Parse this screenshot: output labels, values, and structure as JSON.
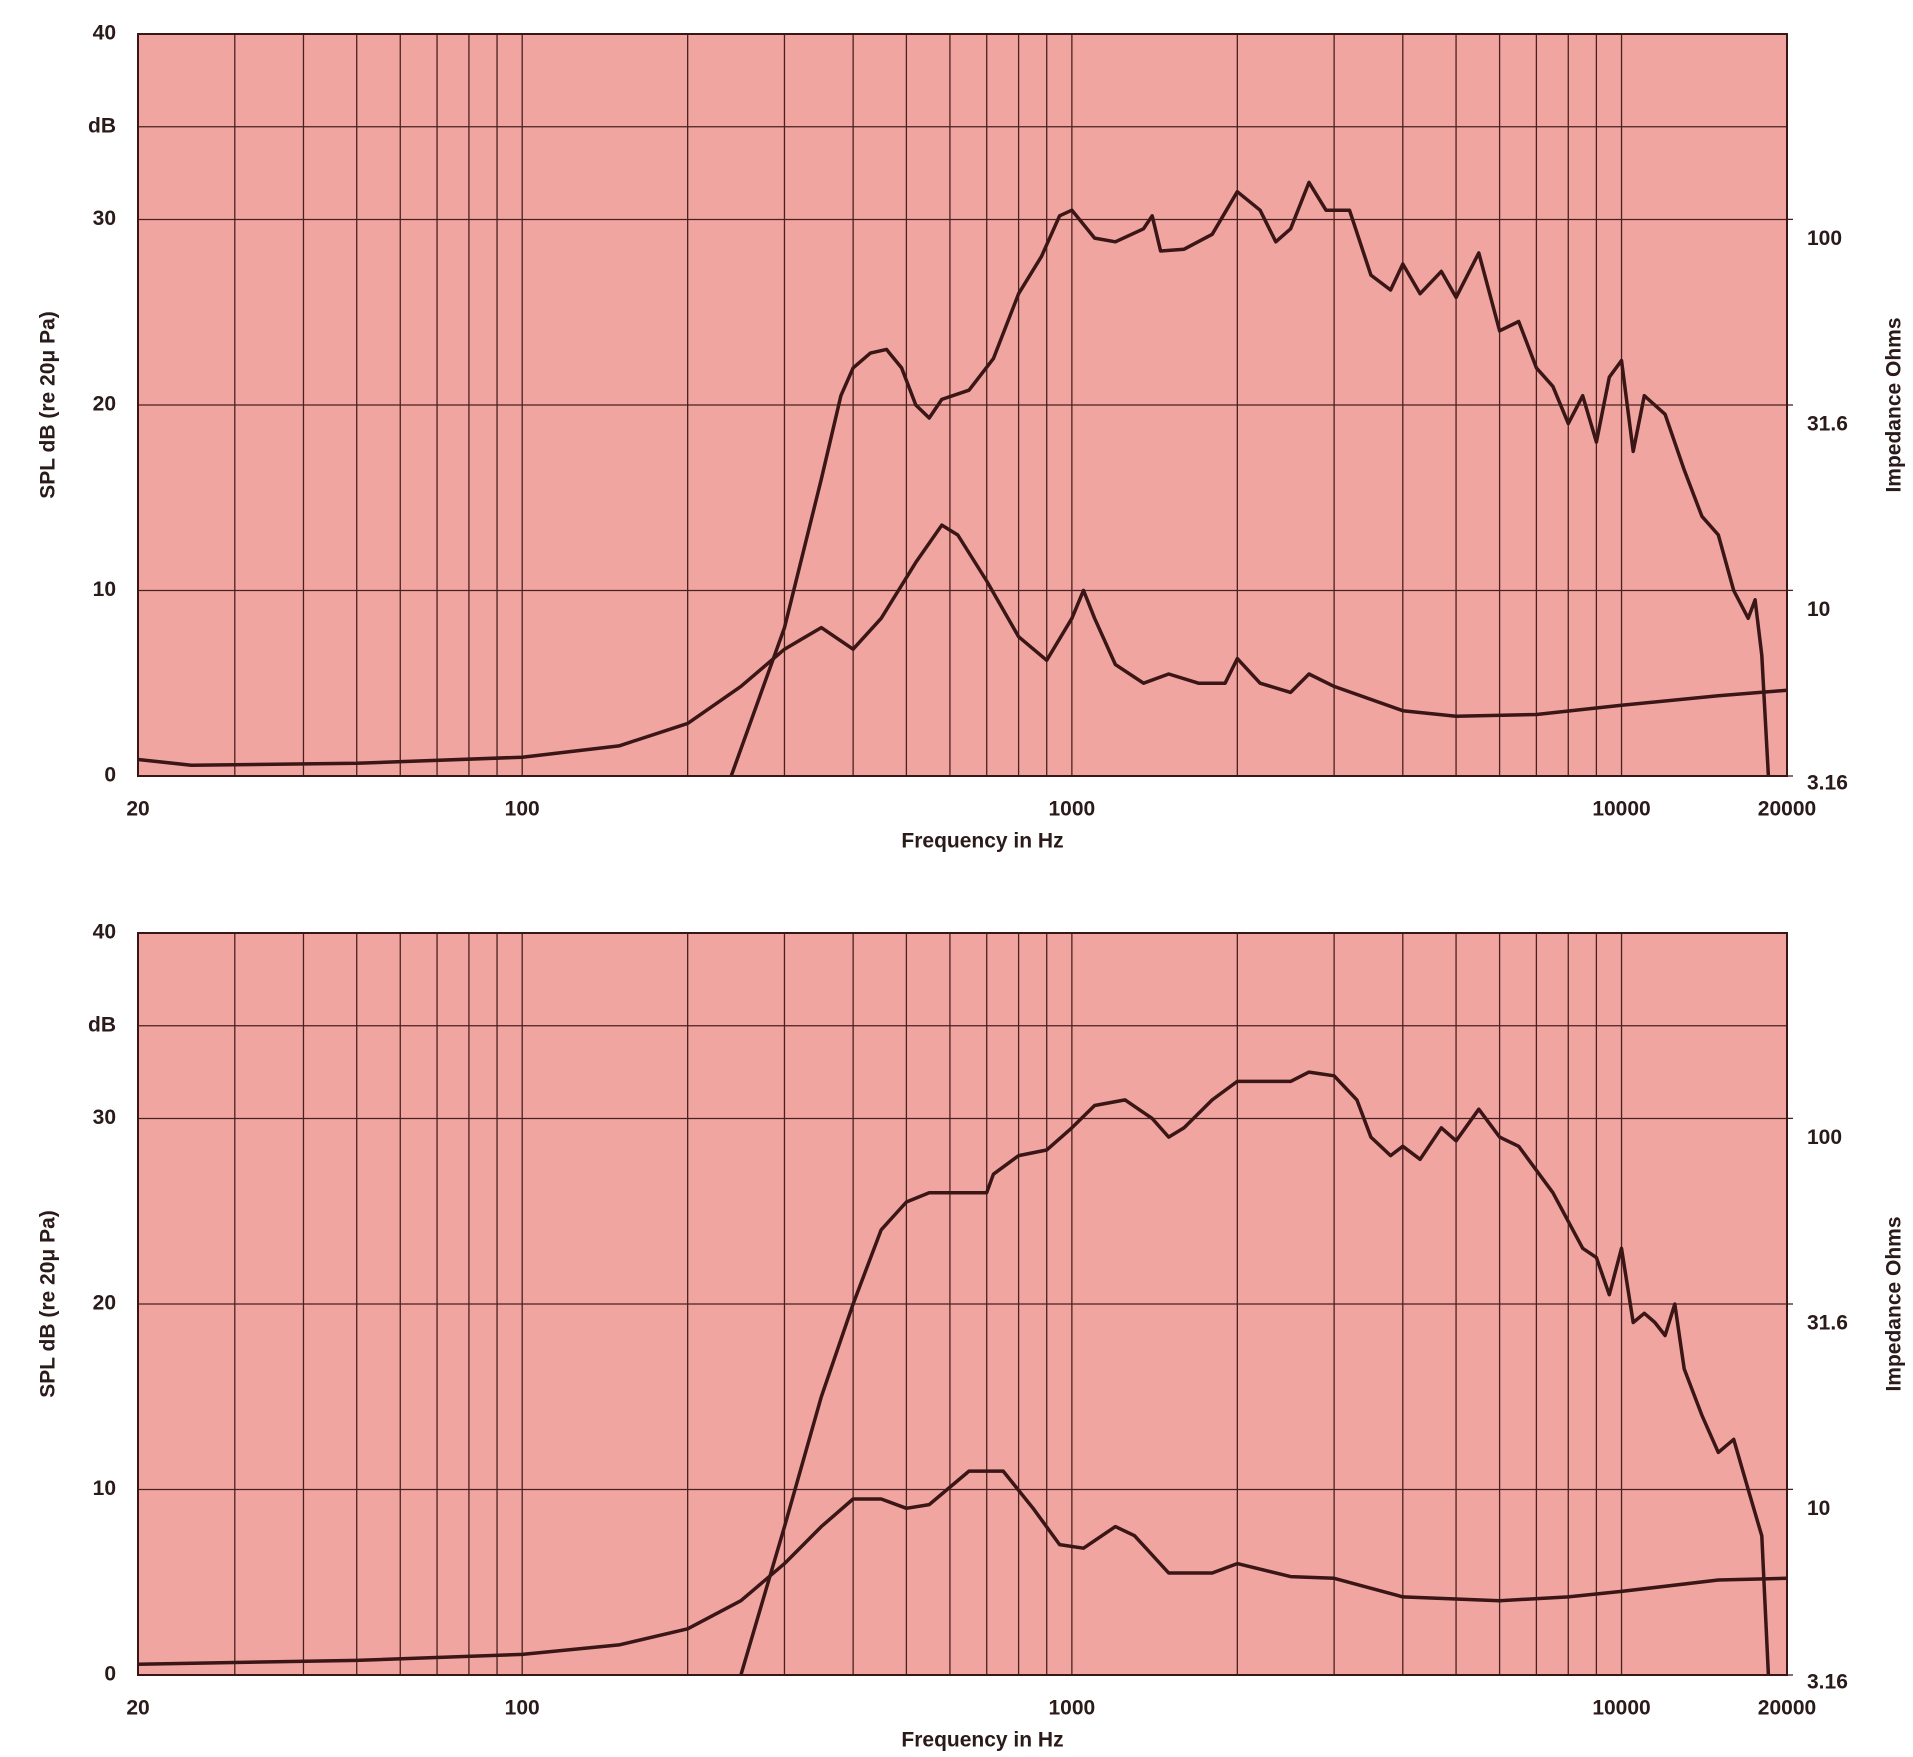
{
  "chart_data": [
    {
      "type": "line",
      "xlabel": "Frequency in Hz",
      "ylabel": "SPL dB (re 20μ Pa)",
      "y2label": "Impedance Ohms",
      "xlog": true,
      "xlim": [
        20,
        20000
      ],
      "xticks": [
        20,
        100,
        1000,
        10000,
        20000
      ],
      "xminorticks": [
        30,
        40,
        50,
        60,
        70,
        80,
        90,
        200,
        300,
        400,
        500,
        600,
        700,
        800,
        900,
        2000,
        3000,
        4000,
        5000,
        6000,
        7000,
        8000,
        9000
      ],
      "ylim": [
        0,
        40
      ],
      "yticks": [
        0,
        10,
        20,
        30,
        {
          "value": 35,
          "label": "dB"
        },
        40
      ],
      "y2log": true,
      "y2lim": [
        3.16,
        316
      ],
      "y2ticks": [
        3.16,
        10,
        31.6,
        100
      ],
      "grid": true,
      "background": "#f1a5a1",
      "series": [
        {
          "color": "#3a1616",
          "axis": "y",
          "x": [
            240,
            300,
            350,
            380,
            400,
            430,
            460,
            490,
            520,
            550,
            580,
            650,
            720,
            800,
            880,
            950,
            1000,
            1100,
            1200,
            1350,
            1400,
            1450,
            1600,
            1800,
            2000,
            2200,
            2350,
            2500,
            2700,
            2900,
            3200,
            3500,
            3800,
            4000,
            4300,
            4700,
            5000,
            5500,
            6000,
            6500,
            7000,
            7500,
            8000,
            8500,
            9000,
            9500,
            10000,
            10500,
            11000,
            12000,
            13000,
            14000,
            15000,
            16000,
            17000,
            17500,
            18000,
            18500
          ],
          "values": [
            0,
            8,
            16,
            20.5,
            22,
            22.8,
            23,
            22,
            20,
            19.3,
            20.3,
            20.8,
            22.5,
            26,
            28,
            30.2,
            30.5,
            29,
            28.8,
            29.5,
            30.2,
            28.3,
            28.4,
            29.2,
            31.5,
            30.5,
            28.8,
            29.5,
            32,
            30.5,
            30.5,
            27,
            26.2,
            27.6,
            26,
            27.2,
            25.8,
            28.2,
            24,
            24.5,
            22,
            21,
            19,
            20.5,
            18,
            21.5,
            22.4,
            17.5,
            20.5,
            19.5,
            16.5,
            14,
            13,
            10,
            8.5,
            9.5,
            6.5,
            0
          ]
        },
        {
          "color": "#3a1616",
          "axis": "y2",
          "x": [
            20,
            25,
            50,
            100,
            150,
            200,
            250,
            300,
            350,
            400,
            450,
            520,
            580,
            620,
            700,
            800,
            900,
            1000,
            1050,
            1100,
            1200,
            1350,
            1500,
            1700,
            1900,
            2000,
            2200,
            2500,
            2700,
            3000,
            4000,
            5000,
            7000,
            10000,
            15000,
            20000
          ],
          "values": [
            3.5,
            3.38,
            3.42,
            3.55,
            3.81,
            4.38,
            5.51,
            6.94,
            7.94,
            6.94,
            8.41,
            11.9,
            15.0,
            14.1,
            10.6,
            7.5,
            6.48,
            8.41,
            10.0,
            8.41,
            6.31,
            5.62,
            5.95,
            5.62,
            5.62,
            6.55,
            5.62,
            5.31,
            5.95,
            5.51,
            4.74,
            4.58,
            4.63,
            4.9,
            5.2,
            5.38
          ]
        }
      ]
    },
    {
      "type": "line",
      "xlabel": "Frequency in Hz",
      "ylabel": "SPL dB (re 20μ Pa)",
      "y2label": "Impedance Ohms",
      "xlog": true,
      "xlim": [
        20,
        20000
      ],
      "xticks": [
        20,
        100,
        1000,
        10000,
        20000
      ],
      "xminorticks": [
        30,
        40,
        50,
        60,
        70,
        80,
        90,
        200,
        300,
        400,
        500,
        600,
        700,
        800,
        900,
        2000,
        3000,
        4000,
        5000,
        6000,
        7000,
        8000,
        9000
      ],
      "ylim": [
        0,
        40
      ],
      "yticks": [
        0,
        10,
        20,
        30,
        {
          "value": 35,
          "label": "dB"
        },
        40
      ],
      "y2log": true,
      "y2lim": [
        3.16,
        316
      ],
      "y2ticks": [
        3.16,
        10,
        31.6,
        100
      ],
      "grid": true,
      "background": "#f1a5a1",
      "series": [
        {
          "color": "#3a1616",
          "axis": "y",
          "x": [
            250,
            300,
            350,
            400,
            450,
            500,
            550,
            700,
            720,
            800,
            900,
            1000,
            1100,
            1250,
            1400,
            1500,
            1600,
            1800,
            2000,
            2500,
            2700,
            3000,
            3300,
            3500,
            3800,
            4000,
            4300,
            4700,
            5000,
            5500,
            6000,
            6500,
            7500,
            8500,
            9000,
            9500,
            10000,
            10500,
            11000,
            11500,
            12000,
            12500,
            13000,
            14000,
            15000,
            16000,
            17000,
            18000,
            18500
          ],
          "values": [
            0,
            8,
            15,
            20,
            24,
            25.5,
            26,
            26,
            27,
            28,
            28.3,
            29.5,
            30.7,
            31,
            30,
            29,
            29.5,
            31,
            32,
            32,
            32.5,
            32.3,
            31,
            29,
            28,
            28.5,
            27.8,
            29.5,
            28.8,
            30.5,
            29,
            28.5,
            26,
            23,
            22.5,
            20.5,
            23,
            19,
            19.5,
            19,
            18.3,
            20,
            16.5,
            14,
            12,
            12.7,
            10,
            7.5,
            0
          ]
        },
        {
          "color": "#3a1616",
          "axis": "y2",
          "x": [
            20,
            50,
            100,
            150,
            200,
            250,
            300,
            350,
            400,
            450,
            500,
            550,
            650,
            750,
            850,
            950,
            1050,
            1200,
            1300,
            1500,
            1800,
            2000,
            2500,
            3000,
            4000,
            6000,
            8000,
            10000,
            15000,
            20000
          ],
          "values": [
            3.38,
            3.46,
            3.59,
            3.81,
            4.21,
            5.01,
            6.31,
            7.94,
            9.42,
            9.42,
            8.89,
            9.1,
            11.2,
            11.2,
            8.89,
            7.1,
            6.94,
            7.94,
            7.5,
            5.95,
            5.95,
            6.31,
            5.82,
            5.76,
            5.13,
            5.01,
            5.13,
            5.31,
            5.7,
            5.76
          ]
        }
      ]
    }
  ]
}
